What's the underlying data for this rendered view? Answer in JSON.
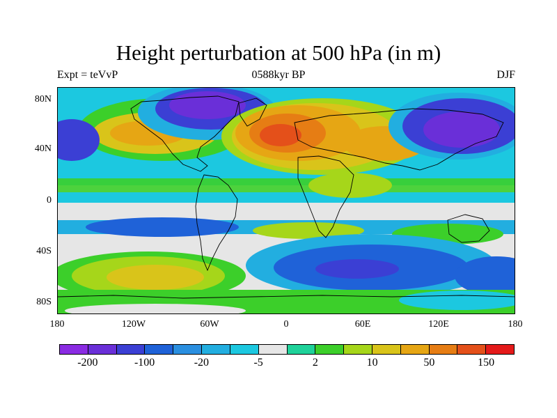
{
  "title": "Height perturbation at 500 hPa (in m)",
  "subtitle_left": "Expt = teVvP",
  "subtitle_center": "0588kyr BP",
  "subtitle_right": "DJF",
  "lat_labels": [
    "80N",
    "40N",
    "0",
    "40S",
    "80S"
  ],
  "lon_labels": [
    "180",
    "120W",
    "60W",
    "0",
    "60E",
    "120E",
    "180"
  ],
  "colorbar": {
    "colors": [
      "#8a2be2",
      "#6a2fd8",
      "#3b3fd4",
      "#1f62d8",
      "#2a8fe0",
      "#22aee0",
      "#1cc8e0",
      "#e6e6e6",
      "#1fd29a",
      "#3ccf2a",
      "#a6d61a",
      "#d9c41a",
      "#e6a614",
      "#e67d14",
      "#e4501a",
      "#e41a1a"
    ],
    "labels": [
      "-200",
      "-100",
      "-20",
      "-5",
      "2",
      "10",
      "50",
      "150"
    ]
  },
  "map": {
    "background_color": "#e6e6e6",
    "coastline_color": "#000000"
  }
}
